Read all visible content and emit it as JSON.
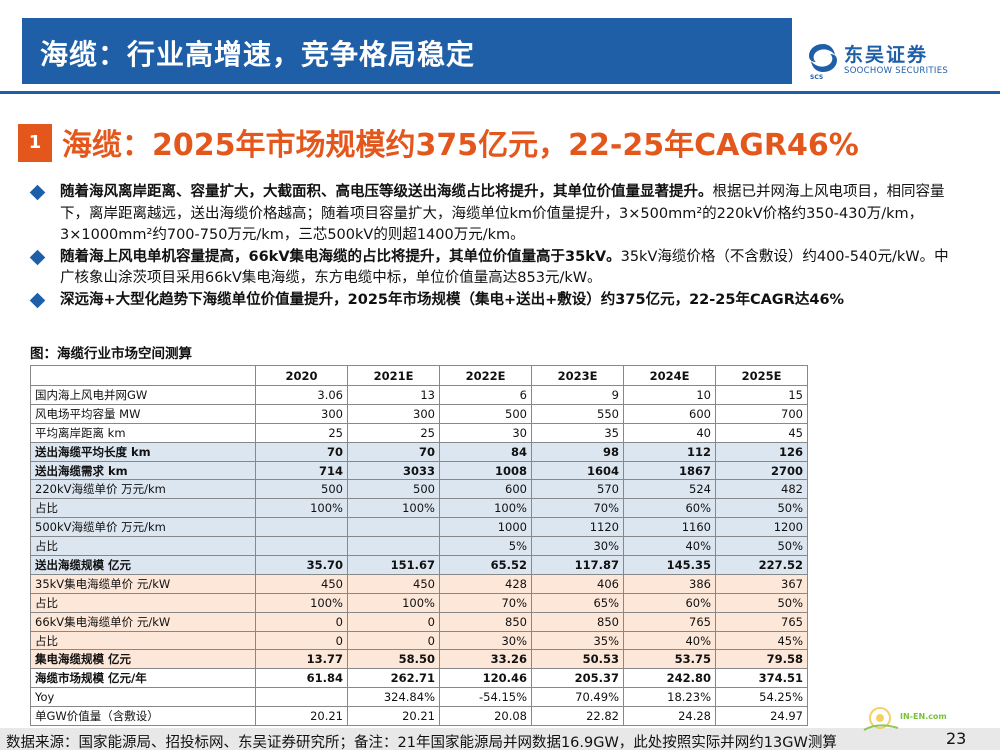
{
  "header": {
    "title": "海缆：行业高增速，竞争格局稳定",
    "logo_cn": "东吴证券",
    "logo_en": "SOOCHOW SECURITIES",
    "logo_mark": "SCS"
  },
  "section": {
    "number": "1",
    "title": "海缆：2025年市场规模约375亿元，22-25年CAGR46%"
  },
  "bullets": [
    {
      "bold": "随着海风离岸距离、容量扩大，大截面积、高电压等级送出海缆占比将提升，其单位价值量显著提升。",
      "text": "根据已并网海上风电项目，相同容量下，离岸距离越远，送出海缆价格越高；随着项目容量扩大，海缆单位km价值量提升，3×500mm²的220kV价格约350-430万/km，3×1000mm²约700-750万元/km，三芯500kV的则超1400万元/km。"
    },
    {
      "bold": "随着海上风电单机容量提高，66kV集电海缆的占比将提升，其单位价值量高于35kV。",
      "text": "35kV海缆价格（不含敷设）约400-540元/kW。中广核象山涂茨项目采用66kV集电海缆，东方电缆中标，单位价值量高达853元/kW。"
    },
    {
      "bold": "深远海+大型化趋势下海缆单位价值量提升，2025年市场规模（集电+送出+敷设）约375亿元，22-25年CAGR达46%",
      "text": ""
    }
  ],
  "figure": {
    "title": "图：海缆行业市场空间测算",
    "columns": [
      "",
      "2020",
      "2021E",
      "2022E",
      "2023E",
      "2024E",
      "2025E"
    ],
    "rows": [
      {
        "label": "国内海上风电并网GW",
        "values": [
          "3.06",
          "13",
          "6",
          "9",
          "10",
          "15"
        ],
        "style": ""
      },
      {
        "label": "风电场平均容量 MW",
        "values": [
          "300",
          "300",
          "500",
          "550",
          "600",
          "700"
        ],
        "style": ""
      },
      {
        "label": "平均离岸距离 km",
        "values": [
          "25",
          "25",
          "30",
          "35",
          "40",
          "45"
        ],
        "style": ""
      },
      {
        "label": "送出海缆平均长度 km",
        "values": [
          "70",
          "70",
          "84",
          "98",
          "112",
          "126"
        ],
        "style": "blue bold"
      },
      {
        "label": "送出海缆需求 km",
        "values": [
          "714",
          "3033",
          "1008",
          "1604",
          "1867",
          "2700"
        ],
        "style": "blue bold"
      },
      {
        "label": "220kV海缆单价 万元/km",
        "values": [
          "500",
          "500",
          "600",
          "570",
          "524",
          "482"
        ],
        "style": "blue"
      },
      {
        "label": "占比",
        "values": [
          "100%",
          "100%",
          "100%",
          "70%",
          "60%",
          "50%"
        ],
        "style": "blue"
      },
      {
        "label": "500kV海缆单价 万元/km",
        "values": [
          "",
          "",
          "1000",
          "1120",
          "1160",
          "1200"
        ],
        "style": "blue"
      },
      {
        "label": "占比",
        "values": [
          "",
          "",
          "5%",
          "30%",
          "40%",
          "50%"
        ],
        "style": "blue"
      },
      {
        "label": "送出海缆规模 亿元",
        "values": [
          "35.70",
          "151.67",
          "65.52",
          "117.87",
          "145.35",
          "227.52"
        ],
        "style": "blue bold"
      },
      {
        "label": "35kV集电海缆单价 元/kW",
        "values": [
          "450",
          "450",
          "428",
          "406",
          "386",
          "367"
        ],
        "style": "salmon"
      },
      {
        "label": "占比",
        "values": [
          "100%",
          "100%",
          "70%",
          "65%",
          "60%",
          "50%"
        ],
        "style": "salmon"
      },
      {
        "label": "66kV集电海缆单价 元/kW",
        "values": [
          "0",
          "0",
          "850",
          "850",
          "765",
          "765"
        ],
        "style": "salmon"
      },
      {
        "label": "占比",
        "values": [
          "0",
          "0",
          "30%",
          "35%",
          "40%",
          "45%"
        ],
        "style": "salmon"
      },
      {
        "label": "集电海缆规模 亿元",
        "values": [
          "13.77",
          "58.50",
          "33.26",
          "50.53",
          "53.75",
          "79.58"
        ],
        "style": "salmon bold"
      },
      {
        "label": "海缆市场规模 亿元/年",
        "values": [
          "61.84",
          "262.71",
          "120.46",
          "205.37",
          "242.80",
          "374.51"
        ],
        "style": "bold"
      },
      {
        "label": "Yoy",
        "values": [
          "",
          "324.84%",
          "-54.15%",
          "70.49%",
          "18.23%",
          "54.25%"
        ],
        "style": ""
      },
      {
        "label": "单GW价值量（含敷设）",
        "values": [
          "20.21",
          "20.21",
          "20.08",
          "22.82",
          "24.28",
          "24.97"
        ],
        "style": ""
      }
    ]
  },
  "footer": {
    "source": "数据来源：国家能源局、招投标网、东吴证券研究所；备注：21年国家能源局并网数据16.9GW，此处按照实际并网约13GW测算",
    "page": "23"
  },
  "watermark": "IN-EN.com",
  "colors": {
    "brand_blue": "#1f5fa8",
    "accent_orange": "#e4571c",
    "row_blue": "#dce6f1",
    "row_salmon": "#fde7d9"
  }
}
